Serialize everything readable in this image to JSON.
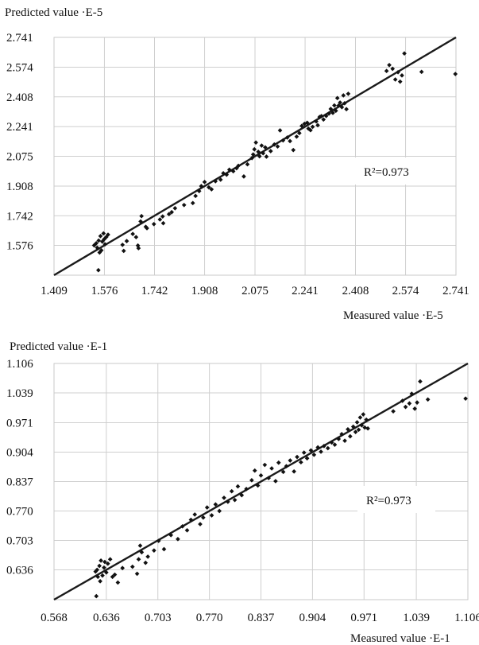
{
  "chart_data": [
    {
      "type": "scatter",
      "ylabel": "Predicted value ·E-5",
      "xlabel": "Measured value ·E-5",
      "annotation": "R²=0.973",
      "xlim": [
        1.409,
        2.741
      ],
      "ylim": [
        1.409,
        2.741
      ],
      "x_ticks": [
        "1.409",
        "1.576",
        "1.742",
        "1.908",
        "2.075",
        "2.241",
        "2.408",
        "2.574",
        "2.741"
      ],
      "y_ticks": [
        "1.576",
        "1.742",
        "1.908",
        "2.075",
        "2.241",
        "2.408",
        "2.574",
        "2.741"
      ],
      "grid": true,
      "fit_line": {
        "slope": 1,
        "intercept": 0
      },
      "points": [
        [
          1.542,
          1.576
        ],
        [
          1.549,
          1.588
        ],
        [
          1.552,
          1.563
        ],
        [
          1.557,
          1.603
        ],
        [
          1.56,
          1.536
        ],
        [
          1.563,
          1.628
        ],
        [
          1.566,
          1.548
        ],
        [
          1.569,
          1.597
        ],
        [
          1.573,
          1.643
        ],
        [
          1.575,
          1.61
        ],
        [
          1.578,
          1.582
        ],
        [
          1.582,
          1.622
        ],
        [
          1.588,
          1.636
        ],
        [
          1.556,
          1.437
        ],
        [
          1.636,
          1.579
        ],
        [
          1.64,
          1.545
        ],
        [
          1.65,
          1.6
        ],
        [
          1.681,
          1.622
        ],
        [
          1.67,
          1.64
        ],
        [
          1.687,
          1.575
        ],
        [
          1.689,
          1.56
        ],
        [
          1.696,
          1.71
        ],
        [
          1.699,
          1.74
        ],
        [
          1.713,
          1.68
        ],
        [
          1.717,
          1.672
        ],
        [
          1.74,
          1.695
        ],
        [
          1.76,
          1.721
        ],
        [
          1.771,
          1.7
        ],
        [
          1.769,
          1.738
        ],
        [
          1.79,
          1.751
        ],
        [
          1.799,
          1.762
        ],
        [
          1.81,
          1.784
        ],
        [
          1.84,
          1.802
        ],
        [
          1.869,
          1.813
        ],
        [
          1.878,
          1.853
        ],
        [
          1.89,
          1.88
        ],
        [
          1.897,
          1.908
        ],
        [
          1.908,
          1.931
        ],
        [
          1.922,
          1.901
        ],
        [
          1.931,
          1.89
        ],
        [
          1.944,
          1.935
        ],
        [
          1.961,
          1.944
        ],
        [
          1.97,
          1.98
        ],
        [
          1.981,
          1.972
        ],
        [
          1.99,
          2.0
        ],
        [
          2.003,
          1.991
        ],
        [
          2.014,
          2.008
        ],
        [
          2.02,
          2.022
        ],
        [
          2.038,
          1.962
        ],
        [
          2.05,
          2.03
        ],
        [
          2.065,
          2.065
        ],
        [
          2.069,
          2.085
        ],
        [
          2.073,
          2.114
        ],
        [
          2.078,
          2.152
        ],
        [
          2.086,
          2.1
        ],
        [
          2.09,
          2.075
        ],
        [
          2.097,
          2.135
        ],
        [
          2.102,
          2.092
        ],
        [
          2.109,
          2.125
        ],
        [
          2.113,
          2.073
        ],
        [
          2.127,
          2.104
        ],
        [
          2.139,
          2.141
        ],
        [
          2.15,
          2.13
        ],
        [
          2.158,
          2.22
        ],
        [
          2.168,
          2.164
        ],
        [
          2.182,
          2.18
        ],
        [
          2.191,
          2.16
        ],
        [
          2.202,
          2.11
        ],
        [
          2.213,
          2.185
        ],
        [
          2.222,
          2.205
        ],
        [
          2.23,
          2.245
        ],
        [
          2.239,
          2.257
        ],
        [
          2.248,
          2.263
        ],
        [
          2.252,
          2.23
        ],
        [
          2.259,
          2.221
        ],
        [
          2.266,
          2.24
        ],
        [
          2.278,
          2.27
        ],
        [
          2.283,
          2.249
        ],
        [
          2.289,
          2.295
        ],
        [
          2.295,
          2.3
        ],
        [
          2.302,
          2.281
        ],
        [
          2.311,
          2.301
        ],
        [
          2.32,
          2.314
        ],
        [
          2.326,
          2.34
        ],
        [
          2.333,
          2.318
        ],
        [
          2.338,
          2.36
        ],
        [
          2.343,
          2.33
        ],
        [
          2.348,
          2.401
        ],
        [
          2.352,
          2.359
        ],
        [
          2.357,
          2.376
        ],
        [
          2.363,
          2.35
        ],
        [
          2.368,
          2.416
        ],
        [
          2.372,
          2.372
        ],
        [
          2.378,
          2.339
        ],
        [
          2.384,
          2.425
        ],
        [
          2.511,
          2.553
        ],
        [
          2.52,
          2.586
        ],
        [
          2.531,
          2.565
        ],
        [
          2.54,
          2.505
        ],
        [
          2.549,
          2.546
        ],
        [
          2.556,
          2.493
        ],
        [
          2.562,
          2.528
        ],
        [
          2.57,
          2.651
        ],
        [
          2.627,
          2.548
        ],
        [
          2.739,
          2.536
        ]
      ]
    },
    {
      "type": "scatter",
      "ylabel": "Predicted value ·E-1",
      "xlabel": "Measured value ·E-1",
      "annotation": "R²=0.973",
      "xlim": [
        0.568,
        1.106
      ],
      "ylim": [
        0.568,
        1.106
      ],
      "x_ticks": [
        "0.568",
        "0.636",
        "0.703",
        "0.770",
        "0.837",
        "0.904",
        "0.971",
        "1.039",
        "1.106"
      ],
      "y_ticks": [
        "0.636",
        "0.703",
        "0.770",
        "0.837",
        "0.904",
        "0.971",
        "1.039",
        "1.106"
      ],
      "grid": true,
      "fit_line": {
        "slope": 1,
        "intercept": 0
      },
      "points": [
        [
          0.622,
          0.632
        ],
        [
          0.624,
          0.636
        ],
        [
          0.625,
          0.62
        ],
        [
          0.627,
          0.645
        ],
        [
          0.628,
          0.61
        ],
        [
          0.629,
          0.657
        ],
        [
          0.631,
          0.623
        ],
        [
          0.633,
          0.641
        ],
        [
          0.634,
          0.654
        ],
        [
          0.636,
          0.63
        ],
        [
          0.638,
          0.65
        ],
        [
          0.641,
          0.66
        ],
        [
          0.644,
          0.62
        ],
        [
          0.623,
          0.576
        ],
        [
          0.647,
          0.625
        ],
        [
          0.651,
          0.607
        ],
        [
          0.657,
          0.64
        ],
        [
          0.67,
          0.643
        ],
        [
          0.676,
          0.627
        ],
        [
          0.678,
          0.66
        ],
        [
          0.68,
          0.691
        ],
        [
          0.682,
          0.676
        ],
        [
          0.687,
          0.652
        ],
        [
          0.69,
          0.666
        ],
        [
          0.698,
          0.68
        ],
        [
          0.704,
          0.702
        ],
        [
          0.711,
          0.683
        ],
        [
          0.72,
          0.715
        ],
        [
          0.729,
          0.706
        ],
        [
          0.735,
          0.735
        ],
        [
          0.741,
          0.726
        ],
        [
          0.746,
          0.75
        ],
        [
          0.751,
          0.762
        ],
        [
          0.758,
          0.74
        ],
        [
          0.762,
          0.755
        ],
        [
          0.767,
          0.778
        ],
        [
          0.773,
          0.76
        ],
        [
          0.778,
          0.785
        ],
        [
          0.783,
          0.77
        ],
        [
          0.789,
          0.8
        ],
        [
          0.794,
          0.791
        ],
        [
          0.799,
          0.815
        ],
        [
          0.803,
          0.795
        ],
        [
          0.807,
          0.826
        ],
        [
          0.812,
          0.806
        ],
        [
          0.818,
          0.82
        ],
        [
          0.825,
          0.84
        ],
        [
          0.829,
          0.862
        ],
        [
          0.833,
          0.828
        ],
        [
          0.837,
          0.851
        ],
        [
          0.842,
          0.875
        ],
        [
          0.847,
          0.845
        ],
        [
          0.851,
          0.867
        ],
        [
          0.856,
          0.838
        ],
        [
          0.86,
          0.88
        ],
        [
          0.866,
          0.859
        ],
        [
          0.87,
          0.872
        ],
        [
          0.875,
          0.885
        ],
        [
          0.88,
          0.86
        ],
        [
          0.884,
          0.893
        ],
        [
          0.889,
          0.881
        ],
        [
          0.893,
          0.903
        ],
        [
          0.897,
          0.89
        ],
        [
          0.902,
          0.908
        ],
        [
          0.906,
          0.898
        ],
        [
          0.911,
          0.915
        ],
        [
          0.915,
          0.905
        ],
        [
          0.919,
          0.918
        ],
        [
          0.924,
          0.913
        ],
        [
          0.929,
          0.926
        ],
        [
          0.933,
          0.921
        ],
        [
          0.938,
          0.934
        ],
        [
          0.942,
          0.945
        ],
        [
          0.946,
          0.93
        ],
        [
          0.95,
          0.956
        ],
        [
          0.953,
          0.94
        ],
        [
          0.957,
          0.962
        ],
        [
          0.96,
          0.95
        ],
        [
          0.962,
          0.972
        ],
        [
          0.964,
          0.955
        ],
        [
          0.966,
          0.983
        ],
        [
          0.968,
          0.965
        ],
        [
          0.97,
          0.99
        ],
        [
          0.972,
          0.96
        ],
        [
          0.974,
          0.978
        ],
        [
          0.976,
          0.958
        ],
        [
          1.009,
          0.997
        ],
        [
          1.021,
          1.021
        ],
        [
          1.025,
          1.007
        ],
        [
          1.03,
          1.015
        ],
        [
          1.033,
          1.037
        ],
        [
          1.037,
          1.003
        ],
        [
          1.04,
          1.017
        ],
        [
          1.044,
          1.065
        ],
        [
          1.054,
          1.024
        ],
        [
          1.103,
          1.026
        ]
      ]
    }
  ]
}
